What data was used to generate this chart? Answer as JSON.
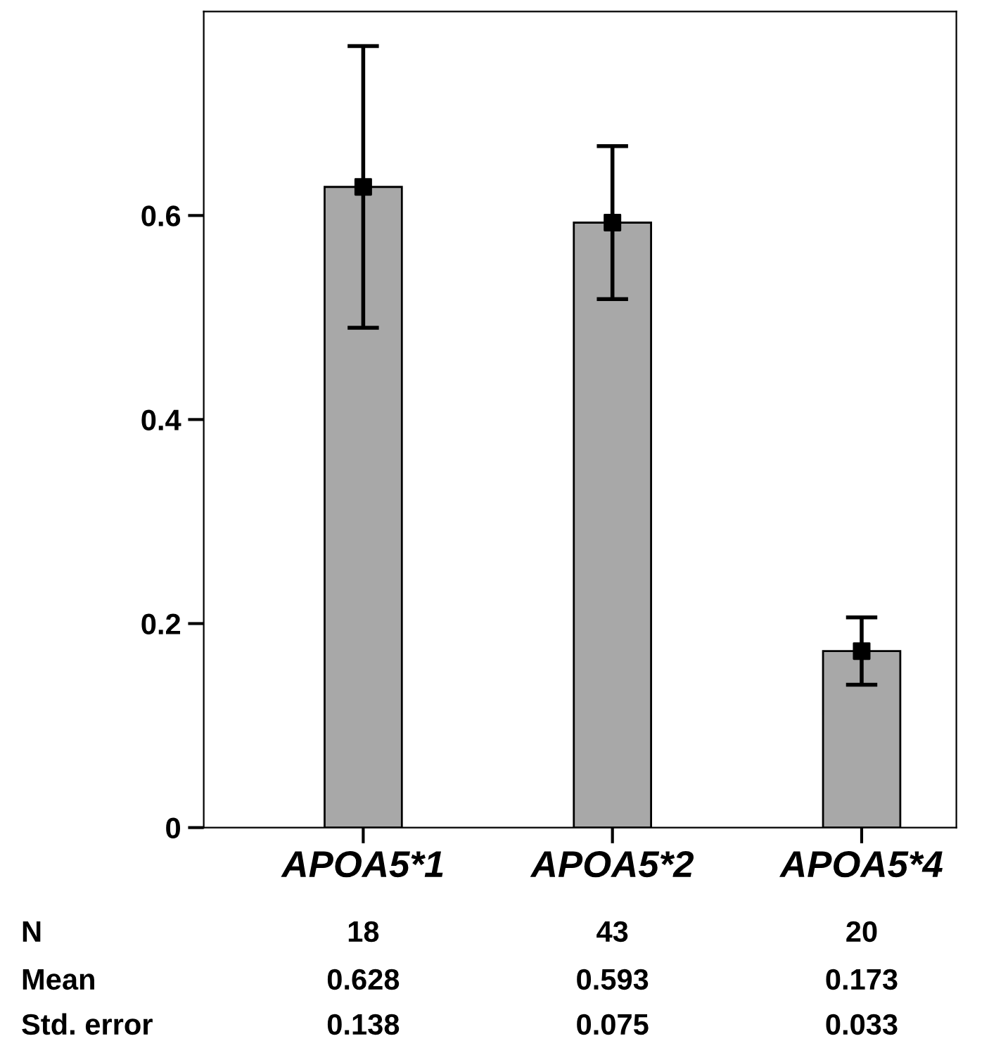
{
  "chart_data": {
    "type": "bar",
    "categories": [
      "APOA5*1",
      "APOA5*2",
      "APOA5*4"
    ],
    "series": [
      {
        "color": "#a8a8a8",
        "values": [
          0.628,
          0.593,
          0.173
        ],
        "errors": [
          0.138,
          0.075,
          0.033
        ],
        "value_labels": [
          "0.628",
          "0.593",
          "0.173"
        ]
      },
      {
        "type": "scatter",
        "color": "#000000",
        "x": [
          "APOA5*1",
          "APOA5*2",
          "APOA5*4"
        ],
        "values": [
          0.628,
          0.593,
          0.173
        ]
      }
    ],
    "marker": "square",
    "ylim": [
      0,
      0.8
    ],
    "yticks": [
      0,
      0.2,
      0.4,
      0.6
    ],
    "grid": false,
    "annotations": [
      "N",
      "18",
      "43",
      "20",
      "Mean",
      "Std. error",
      "0.138",
      "0.075",
      "0.033"
    ]
  }
}
